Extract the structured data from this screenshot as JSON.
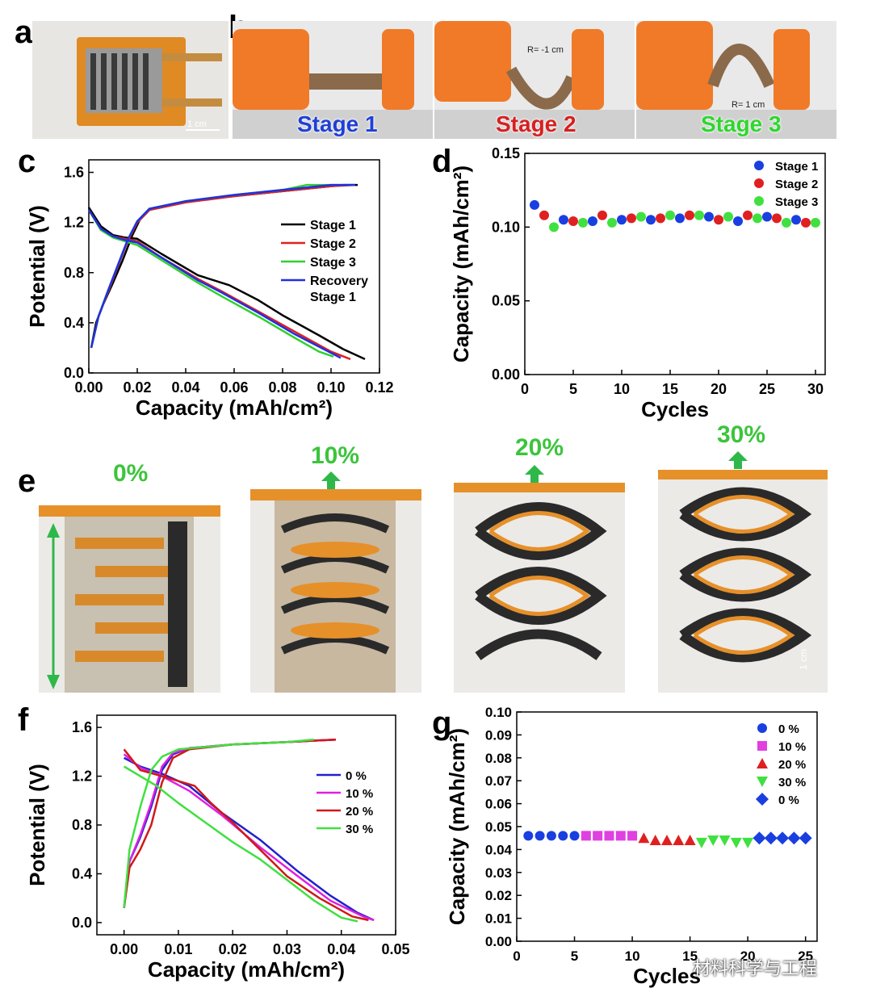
{
  "panels": {
    "a": "a",
    "b": "b",
    "c": "c",
    "d": "d",
    "e": "e",
    "f": "f",
    "g": "g"
  },
  "photo_a": {
    "scale": "1 cm"
  },
  "photo_b": {
    "stage_labels": [
      "Stage 1",
      "Stage 2",
      "Stage 3"
    ],
    "stage_colors": [
      "#1f3fd6",
      "#d62020",
      "#2fd62f"
    ],
    "radius_labels": [
      "R= -1 cm",
      "R= 1 cm"
    ]
  },
  "photo_e": {
    "strain_labels": [
      "0%",
      "10%",
      "20%",
      "30%"
    ],
    "scale": "1 cm",
    "label_color": "#3cc43c"
  },
  "watermark": "材料科学与工程",
  "chart_data": [
    {
      "id": "c",
      "type": "line",
      "xlabel": "Capacity (mAh/cm²)",
      "ylabel": "Potential (V)",
      "xlim": [
        0,
        0.12
      ],
      "ylim": [
        0,
        1.7
      ],
      "xticks": [
        "0.00",
        "0.02",
        "0.04",
        "0.06",
        "0.08",
        "0.10",
        "0.12"
      ],
      "yticks": [
        "0.0",
        "0.4",
        "0.8",
        "1.2",
        "1.6"
      ],
      "series": [
        {
          "name": "Stage 1",
          "color": "#000000",
          "charge": [
            [
              0.001,
              0.2
            ],
            [
              0.003,
              0.4
            ],
            [
              0.006,
              0.55
            ],
            [
              0.01,
              0.72
            ],
            [
              0.014,
              0.9
            ],
            [
              0.018,
              1.1
            ],
            [
              0.021,
              1.22
            ],
            [
              0.025,
              1.3
            ],
            [
              0.035,
              1.35
            ],
            [
              0.05,
              1.39
            ],
            [
              0.07,
              1.43
            ],
            [
              0.09,
              1.47
            ],
            [
              0.105,
              1.5
            ],
            [
              0.111,
              1.5
            ]
          ],
          "discharge": [
            [
              0.0,
              1.32
            ],
            [
              0.005,
              1.17
            ],
            [
              0.01,
              1.1
            ],
            [
              0.015,
              1.08
            ],
            [
              0.02,
              1.07
            ],
            [
              0.03,
              0.95
            ],
            [
              0.045,
              0.78
            ],
            [
              0.058,
              0.7
            ],
            [
              0.07,
              0.58
            ],
            [
              0.08,
              0.46
            ],
            [
              0.095,
              0.3
            ],
            [
              0.105,
              0.19
            ],
            [
              0.114,
              0.11
            ]
          ]
        },
        {
          "name": "Stage 2",
          "color": "#e02020",
          "charge": [
            [
              0.001,
              0.2
            ],
            [
              0.004,
              0.45
            ],
            [
              0.008,
              0.65
            ],
            [
              0.012,
              0.85
            ],
            [
              0.016,
              1.05
            ],
            [
              0.02,
              1.2
            ],
            [
              0.025,
              1.3
            ],
            [
              0.04,
              1.36
            ],
            [
              0.06,
              1.41
            ],
            [
              0.08,
              1.45
            ],
            [
              0.1,
              1.49
            ],
            [
              0.11,
              1.5
            ]
          ],
          "discharge": [
            [
              0.0,
              1.3
            ],
            [
              0.005,
              1.15
            ],
            [
              0.01,
              1.09
            ],
            [
              0.015,
              1.07
            ],
            [
              0.02,
              1.05
            ],
            [
              0.03,
              0.92
            ],
            [
              0.045,
              0.75
            ],
            [
              0.055,
              0.65
            ],
            [
              0.07,
              0.49
            ],
            [
              0.085,
              0.33
            ],
            [
              0.1,
              0.17
            ],
            [
              0.108,
              0.11
            ]
          ]
        },
        {
          "name": "Stage 3",
          "color": "#30d030",
          "charge": [
            [
              0.001,
              0.2
            ],
            [
              0.004,
              0.45
            ],
            [
              0.008,
              0.66
            ],
            [
              0.012,
              0.86
            ],
            [
              0.016,
              1.06
            ],
            [
              0.02,
              1.21
            ],
            [
              0.025,
              1.31
            ],
            [
              0.04,
              1.37
            ],
            [
              0.06,
              1.42
            ],
            [
              0.08,
              1.46
            ],
            [
              0.09,
              1.5
            ],
            [
              0.11,
              1.5
            ]
          ],
          "discharge": [
            [
              0.0,
              1.3
            ],
            [
              0.005,
              1.14
            ],
            [
              0.01,
              1.08
            ],
            [
              0.015,
              1.05
            ],
            [
              0.02,
              1.02
            ],
            [
              0.03,
              0.9
            ],
            [
              0.045,
              0.72
            ],
            [
              0.055,
              0.61
            ],
            [
              0.07,
              0.45
            ],
            [
              0.085,
              0.28
            ],
            [
              0.095,
              0.17
            ],
            [
              0.101,
              0.13
            ]
          ]
        },
        {
          "name": "Recovery Stage 1",
          "color": "#2030e0",
          "charge": [
            [
              0.001,
              0.2
            ],
            [
              0.004,
              0.45
            ],
            [
              0.008,
              0.66
            ],
            [
              0.012,
              0.86
            ],
            [
              0.016,
              1.06
            ],
            [
              0.02,
              1.21
            ],
            [
              0.025,
              1.31
            ],
            [
              0.04,
              1.37
            ],
            [
              0.06,
              1.42
            ],
            [
              0.08,
              1.46
            ],
            [
              0.1,
              1.5
            ],
            [
              0.11,
              1.5
            ]
          ],
          "discharge": [
            [
              0.0,
              1.3
            ],
            [
              0.005,
              1.15
            ],
            [
              0.01,
              1.09
            ],
            [
              0.015,
              1.06
            ],
            [
              0.02,
              1.04
            ],
            [
              0.03,
              0.92
            ],
            [
              0.045,
              0.74
            ],
            [
              0.055,
              0.64
            ],
            [
              0.07,
              0.48
            ],
            [
              0.085,
              0.31
            ],
            [
              0.097,
              0.19
            ],
            [
              0.104,
              0.12
            ]
          ]
        }
      ]
    },
    {
      "id": "d",
      "type": "scatter",
      "xlabel": "Cycles",
      "ylabel": "Capacity (mAh/cm²)",
      "xlim": [
        0,
        31
      ],
      "ylim": [
        0,
        0.15
      ],
      "xticks": [
        "0",
        "5",
        "10",
        "15",
        "20",
        "25",
        "30"
      ],
      "yticks": [
        "0.00",
        "0.05",
        "0.10",
        "0.15"
      ],
      "series": [
        {
          "name": "Stage 1",
          "color": "#1a3fe0",
          "marker": "circle",
          "x": [
            1,
            4,
            7,
            10,
            13,
            16,
            19,
            22,
            25,
            28
          ],
          "y": [
            0.115,
            0.105,
            0.104,
            0.105,
            0.105,
            0.106,
            0.107,
            0.104,
            0.107,
            0.105
          ]
        },
        {
          "name": "Stage 2",
          "color": "#e02020",
          "marker": "circle",
          "x": [
            2,
            5,
            8,
            11,
            14,
            17,
            20,
            23,
            26,
            29
          ],
          "y": [
            0.108,
            0.104,
            0.108,
            0.106,
            0.106,
            0.108,
            0.105,
            0.108,
            0.106,
            0.103
          ]
        },
        {
          "name": "Stage 3",
          "color": "#40e040",
          "marker": "circle",
          "x": [
            3,
            6,
            9,
            12,
            15,
            18,
            21,
            24,
            27,
            30
          ],
          "y": [
            0.1,
            0.103,
            0.103,
            0.107,
            0.108,
            0.108,
            0.107,
            0.106,
            0.103,
            0.103
          ]
        }
      ]
    },
    {
      "id": "f",
      "type": "line",
      "xlabel": "Capacity (mAh/cm²)",
      "ylabel": "Potential (V)",
      "xlim": [
        -0.005,
        0.05
      ],
      "ylim": [
        -0.1,
        1.7
      ],
      "xticks": [
        "0.00",
        "0.01",
        "0.02",
        "0.03",
        "0.04",
        "0.05"
      ],
      "yticks": [
        "0.0",
        "0.4",
        "0.8",
        "1.2",
        "1.6"
      ],
      "series": [
        {
          "name": "0 %",
          "color": "#2020d0",
          "charge": [
            [
              0.0,
              0.12
            ],
            [
              0.001,
              0.5
            ],
            [
              0.003,
              0.7
            ],
            [
              0.005,
              0.95
            ],
            [
              0.007,
              1.25
            ],
            [
              0.009,
              1.38
            ],
            [
              0.012,
              1.43
            ],
            [
              0.02,
              1.46
            ],
            [
              0.03,
              1.48
            ],
            [
              0.039,
              1.5
            ]
          ],
          "discharge": [
            [
              0.0,
              1.35
            ],
            [
              0.003,
              1.28
            ],
            [
              0.007,
              1.22
            ],
            [
              0.012,
              1.12
            ],
            [
              0.018,
              0.9
            ],
            [
              0.025,
              0.68
            ],
            [
              0.032,
              0.42
            ],
            [
              0.038,
              0.22
            ],
            [
              0.043,
              0.08
            ],
            [
              0.046,
              0.02
            ]
          ]
        },
        {
          "name": "10 %",
          "color": "#e020e0",
          "charge": [
            [
              0.0,
              0.12
            ],
            [
              0.001,
              0.5
            ],
            [
              0.003,
              0.72
            ],
            [
              0.005,
              0.98
            ],
            [
              0.007,
              1.28
            ],
            [
              0.009,
              1.39
            ],
            [
              0.012,
              1.43
            ],
            [
              0.02,
              1.46
            ],
            [
              0.03,
              1.48
            ],
            [
              0.039,
              1.5
            ]
          ],
          "discharge": [
            [
              0.0,
              1.38
            ],
            [
              0.003,
              1.27
            ],
            [
              0.007,
              1.2
            ],
            [
              0.012,
              1.08
            ],
            [
              0.018,
              0.88
            ],
            [
              0.025,
              0.62
            ],
            [
              0.032,
              0.38
            ],
            [
              0.038,
              0.18
            ],
            [
              0.044,
              0.05
            ],
            [
              0.046,
              0.02
            ]
          ]
        },
        {
          "name": "20 %",
          "color": "#d01818",
          "charge": [
            [
              0.0,
              0.12
            ],
            [
              0.001,
              0.45
            ],
            [
              0.003,
              0.6
            ],
            [
              0.005,
              0.8
            ],
            [
              0.007,
              1.15
            ],
            [
              0.009,
              1.35
            ],
            [
              0.012,
              1.42
            ],
            [
              0.02,
              1.46
            ],
            [
              0.03,
              1.48
            ],
            [
              0.039,
              1.5
            ]
          ],
          "discharge": [
            [
              0.0,
              1.42
            ],
            [
              0.003,
              1.25
            ],
            [
              0.007,
              1.2
            ],
            [
              0.013,
              1.12
            ],
            [
              0.016,
              0.98
            ],
            [
              0.02,
              0.82
            ],
            [
              0.025,
              0.6
            ],
            [
              0.03,
              0.38
            ],
            [
              0.036,
              0.2
            ],
            [
              0.042,
              0.05
            ],
            [
              0.045,
              0.02
            ]
          ]
        },
        {
          "name": "30 %",
          "color": "#40e040",
          "charge": [
            [
              0.0,
              0.12
            ],
            [
              0.001,
              0.6
            ],
            [
              0.003,
              0.95
            ],
            [
              0.005,
              1.25
            ],
            [
              0.007,
              1.36
            ],
            [
              0.01,
              1.42
            ],
            [
              0.02,
              1.46
            ],
            [
              0.03,
              1.48
            ],
            [
              0.035,
              1.5
            ]
          ],
          "discharge": [
            [
              0.0,
              1.28
            ],
            [
              0.003,
              1.2
            ],
            [
              0.006,
              1.12
            ],
            [
              0.01,
              0.98
            ],
            [
              0.015,
              0.82
            ],
            [
              0.02,
              0.66
            ],
            [
              0.025,
              0.52
            ],
            [
              0.03,
              0.35
            ],
            [
              0.035,
              0.18
            ],
            [
              0.04,
              0.04
            ],
            [
              0.043,
              0.01
            ]
          ]
        }
      ]
    },
    {
      "id": "g",
      "type": "scatter",
      "xlabel": "Cycles",
      "ylabel": "Capacity (mAh/cm²)",
      "xlim": [
        0,
        26
      ],
      "ylim": [
        0,
        0.1
      ],
      "xticks": [
        "0",
        "5",
        "10",
        "15",
        "20",
        "25"
      ],
      "yticks": [
        "0.00",
        "0.01",
        "0.02",
        "0.03",
        "0.04",
        "0.05",
        "0.06",
        "0.07",
        "0.08",
        "0.09",
        "0.10"
      ],
      "series": [
        {
          "name": "0 %",
          "color": "#1a3fe0",
          "marker": "circle",
          "x": [
            1,
            2,
            3,
            4,
            5
          ],
          "y": [
            0.046,
            0.046,
            0.046,
            0.046,
            0.046
          ]
        },
        {
          "name": "10 %",
          "color": "#e040e0",
          "marker": "square",
          "x": [
            6,
            7,
            8,
            9,
            10
          ],
          "y": [
            0.046,
            0.046,
            0.046,
            0.046,
            0.046
          ]
        },
        {
          "name": "20 %",
          "color": "#e02020",
          "marker": "triangle-up",
          "x": [
            11,
            12,
            13,
            14,
            15
          ],
          "y": [
            0.045,
            0.044,
            0.044,
            0.044,
            0.044
          ]
        },
        {
          "name": "30 %",
          "color": "#40e040",
          "marker": "triangle-down",
          "x": [
            16,
            17,
            18,
            19,
            20
          ],
          "y": [
            0.043,
            0.044,
            0.044,
            0.043,
            0.043
          ]
        },
        {
          "name": "0 %",
          "color": "#1a3fe0",
          "marker": "diamond",
          "x": [
            21,
            22,
            23,
            24,
            25
          ],
          "y": [
            0.045,
            0.045,
            0.045,
            0.045,
            0.045
          ]
        }
      ]
    }
  ]
}
